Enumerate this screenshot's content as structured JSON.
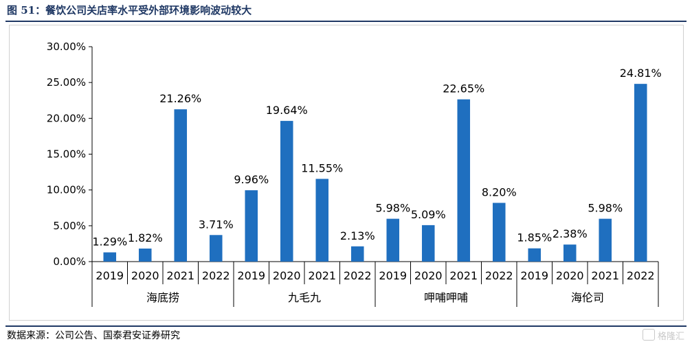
{
  "title": "图 51：餐饮公司关店率水平受外部环境影响波动较大",
  "source": "数据来源：公司公告、国泰君安证券研究",
  "watermark": "格隆汇",
  "chart_data": {
    "type": "bar",
    "ytick_labels": [
      "0.00%",
      "5.00%",
      "10.00%",
      "15.00%",
      "20.00%",
      "25.00%",
      "30.00%"
    ],
    "ylim": [
      0,
      30
    ],
    "bar_color": "#1f6fbf",
    "groups": [
      {
        "name": "海底捞",
        "categories": [
          "2019",
          "2020",
          "2021",
          "2022"
        ],
        "values": [
          1.29,
          1.82,
          21.26,
          3.71
        ],
        "labels": [
          "1.29%",
          "1.82%",
          "21.26%",
          "3.71%"
        ]
      },
      {
        "name": "九毛九",
        "categories": [
          "2019",
          "2020",
          "2021",
          "2022"
        ],
        "values": [
          9.96,
          19.64,
          11.55,
          2.13
        ],
        "labels": [
          "9.96%",
          "19.64%",
          "11.55%",
          "2.13%"
        ]
      },
      {
        "name": "呷哺呷哺",
        "categories": [
          "2019",
          "2020",
          "2021",
          "2022"
        ],
        "values": [
          5.98,
          5.09,
          22.65,
          8.2
        ],
        "labels": [
          "5.98%",
          "5.09%",
          "22.65%",
          "8.20%"
        ]
      },
      {
        "name": "海伦司",
        "categories": [
          "2019",
          "2020",
          "2021",
          "2022"
        ],
        "values": [
          1.85,
          2.38,
          5.98,
          24.81
        ],
        "labels": [
          "1.85%",
          "2.38%",
          "5.98%",
          "24.81%"
        ]
      }
    ]
  }
}
